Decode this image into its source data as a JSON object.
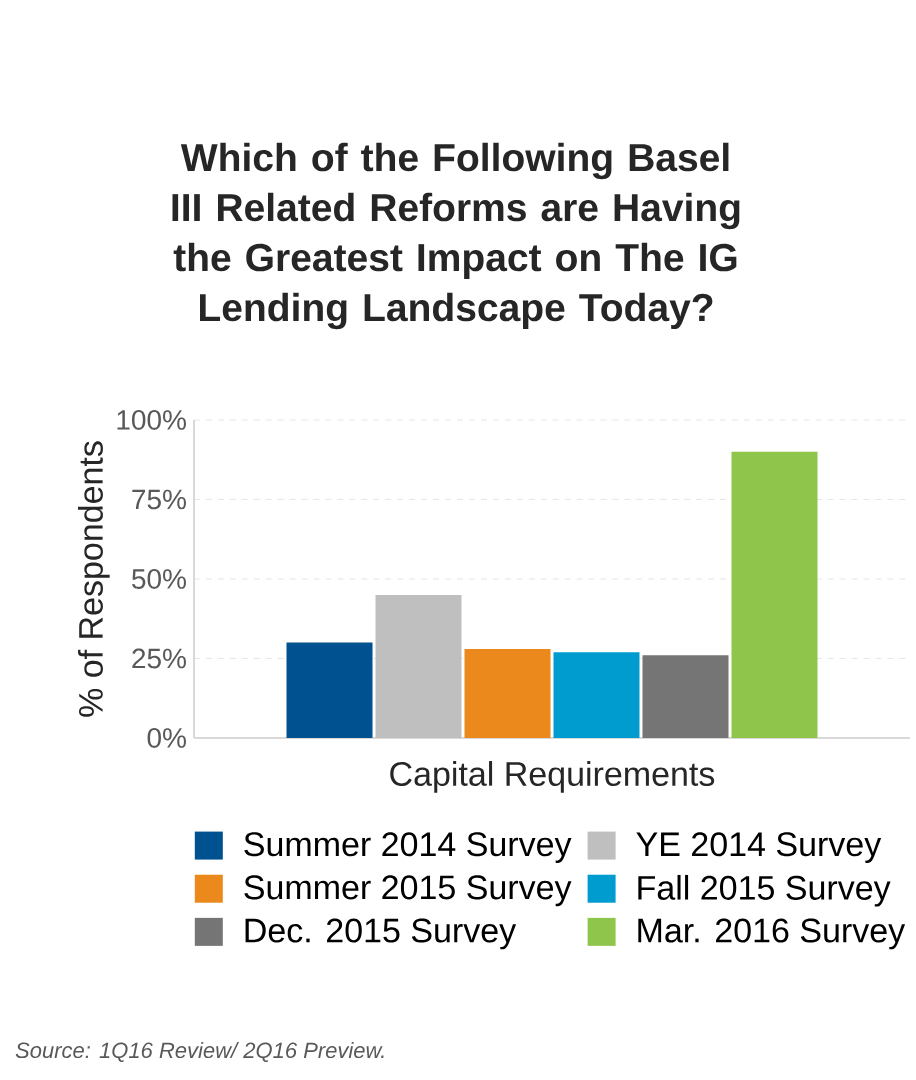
{
  "chart_data": {
    "type": "bar",
    "title": "Which of the Following Basel III Related Reforms are Having the Greatest Impact on The IG Lending Landscape Today?",
    "ylabel": "% of Respondents",
    "categories": [
      "Capital Requirements"
    ],
    "series": [
      {
        "name": "Summer 2014 Survey",
        "color": "#00518f",
        "values": [
          30
        ]
      },
      {
        "name": "YE 2014 Survey",
        "color": "#bfbfbf",
        "values": [
          45
        ]
      },
      {
        "name": "Summer 2015 Survey",
        "color": "#ec891d",
        "values": [
          28
        ]
      },
      {
        "name": "Fall 2015 Survey",
        "color": "#009ccf",
        "values": [
          27
        ]
      },
      {
        "name": "Dec. 2015 Survey",
        "color": "#757575",
        "values": [
          26
        ]
      },
      {
        "name": "Mar. 2016 Survey",
        "color": "#8fc54a",
        "values": [
          90
        ]
      }
    ],
    "ylim": [
      0,
      100
    ],
    "yticks": [
      {
        "value": 0,
        "label": "0%"
      },
      {
        "value": 25,
        "label": "25%"
      },
      {
        "value": 50,
        "label": "50%"
      },
      {
        "value": 75,
        "label": "75%"
      },
      {
        "value": 100,
        "label": "100%"
      }
    ],
    "grid": "y",
    "legend": "bottom",
    "annotations": [
      "Source: 1Q16 Review/ 2Q16 Preview."
    ]
  }
}
